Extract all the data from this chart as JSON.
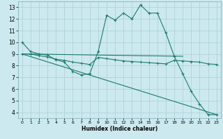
{
  "title": "",
  "xlabel": "Humidex (Indice chaleur)",
  "xlim": [
    -0.5,
    23.5
  ],
  "ylim": [
    3.5,
    13.5
  ],
  "xticks": [
    0,
    1,
    2,
    3,
    4,
    5,
    6,
    7,
    8,
    9,
    10,
    11,
    12,
    13,
    14,
    15,
    16,
    17,
    18,
    19,
    20,
    21,
    22,
    23
  ],
  "yticks": [
    4,
    5,
    6,
    7,
    8,
    9,
    10,
    11,
    12,
    13
  ],
  "bg_color": "#cce9ef",
  "grid_color": "#aacdd6",
  "line_color": "#1a7a6e",
  "line1_x": [
    0,
    1,
    2,
    3,
    4,
    5,
    6,
    7,
    8,
    9,
    10,
    11,
    12,
    13,
    14,
    15,
    16,
    17,
    18,
    19,
    20,
    21,
    22,
    23
  ],
  "line1_y": [
    10,
    9.2,
    9.0,
    8.9,
    8.5,
    8.3,
    7.5,
    7.2,
    7.3,
    9.2,
    12.3,
    11.9,
    12.5,
    12.0,
    13.2,
    12.5,
    12.5,
    10.8,
    8.8,
    7.3,
    5.8,
    4.7,
    3.8,
    3.8
  ],
  "line2_x": [
    0,
    1,
    2,
    3,
    4,
    5,
    6,
    7,
    8,
    9,
    10,
    11,
    12,
    13,
    14,
    15,
    16,
    17,
    18,
    19,
    20,
    21,
    22,
    23
  ],
  "line2_y": [
    9.0,
    9.0,
    8.85,
    8.75,
    8.55,
    8.45,
    8.3,
    8.2,
    8.1,
    8.7,
    8.6,
    8.5,
    8.4,
    8.35,
    8.3,
    8.25,
    8.2,
    8.15,
    8.45,
    8.4,
    8.35,
    8.3,
    8.15,
    8.1
  ],
  "line3_x": [
    0,
    19
  ],
  "line3_y": [
    9.0,
    8.8
  ],
  "line4_x": [
    0,
    23
  ],
  "line4_y": [
    9.0,
    3.8
  ]
}
